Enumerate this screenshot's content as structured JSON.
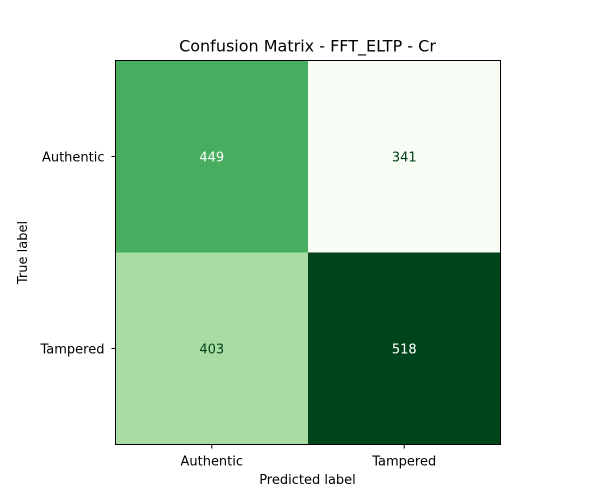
{
  "chart_data": {
    "type": "heatmap",
    "title": "Confusion Matrix - FFT_ELTP - Cr",
    "xlabel": "Predicted label",
    "ylabel": "True label",
    "x_categories": [
      "Authentic",
      "Tampered"
    ],
    "y_categories": [
      "Authentic",
      "Tampered"
    ],
    "values": [
      [
        449,
        341
      ],
      [
        403,
        518
      ]
    ],
    "colormap": "Greens",
    "colorbar": false,
    "grid": false
  }
}
